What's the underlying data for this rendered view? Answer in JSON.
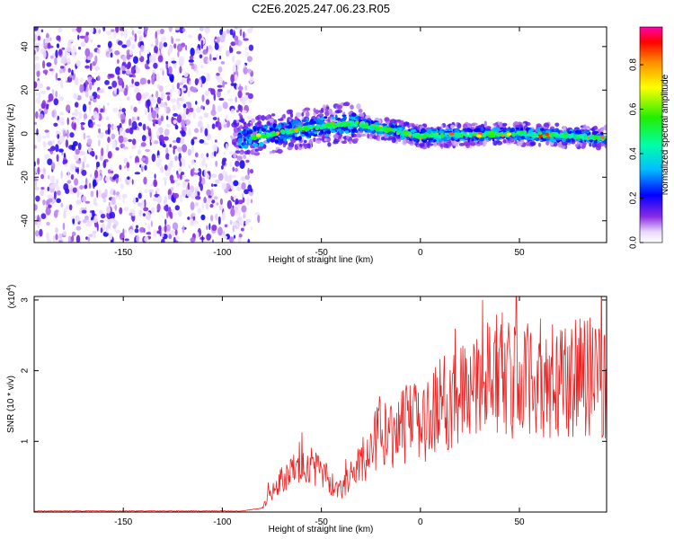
{
  "title": "C2E6.2025.247.06.23.R05",
  "colors": {
    "series_line": "#ee2222",
    "axis": "#000000",
    "background": "#ffffff"
  },
  "chart_data": [
    {
      "type": "heatmap",
      "name": "spectrogram",
      "xlabel": "Height of straight line (km)",
      "ylabel": "Frequency (Hz)",
      "xlim": [
        -195,
        94
      ],
      "ylim": [
        -50,
        49
      ],
      "xticks": [
        -150,
        -100,
        -50,
        0,
        50
      ],
      "yticks": [
        -40,
        -20,
        0,
        20,
        40
      ],
      "colorbar": {
        "label": "Normalized spectral amplitude",
        "range": [
          0.0,
          0.97
        ],
        "ticks": [
          0.0,
          0.2,
          0.4,
          0.6,
          0.8
        ]
      },
      "features": {
        "noise_region_x": [
          -195,
          -85
        ],
        "signal_region_x": [
          -95,
          94
        ],
        "signal_center_freq_hz": [
          [
            -95,
            -3
          ],
          [
            -60,
            2
          ],
          [
            -35,
            5
          ],
          [
            0,
            -1
          ],
          [
            50,
            0
          ],
          [
            94,
            -2
          ]
        ],
        "signal_peak_amplitude": 0.95
      }
    },
    {
      "type": "line",
      "name": "snr",
      "xlabel": "Height of straight line (km)",
      "ylabel": "SNR (10 * v/v)",
      "y_multiplier_label": "(x10",
      "y_multiplier_exp": "4",
      "y_multiplier_close": ")",
      "xlim": [
        -195,
        94
      ],
      "ylim": [
        0,
        3.05
      ],
      "xticks": [
        -150,
        -100,
        -50,
        0,
        50
      ],
      "yticks": [
        1,
        2,
        3
      ],
      "envelope": {
        "x": [
          -195,
          -90,
          -80,
          -75,
          -65,
          -60,
          -50,
          -40,
          -35,
          -30,
          -25,
          -20,
          -15,
          -10,
          -5,
          0,
          10,
          20,
          30,
          40,
          50,
          60,
          70,
          80,
          94
        ],
        "y": [
          0.01,
          0.01,
          0.05,
          0.3,
          0.6,
          0.8,
          0.55,
          0.3,
          0.5,
          0.7,
          0.9,
          1.2,
          1.1,
          1.2,
          1.3,
          1.2,
          1.5,
          1.7,
          1.9,
          2.0,
          1.8,
          1.9,
          1.8,
          1.9,
          1.9
        ]
      }
    }
  ]
}
